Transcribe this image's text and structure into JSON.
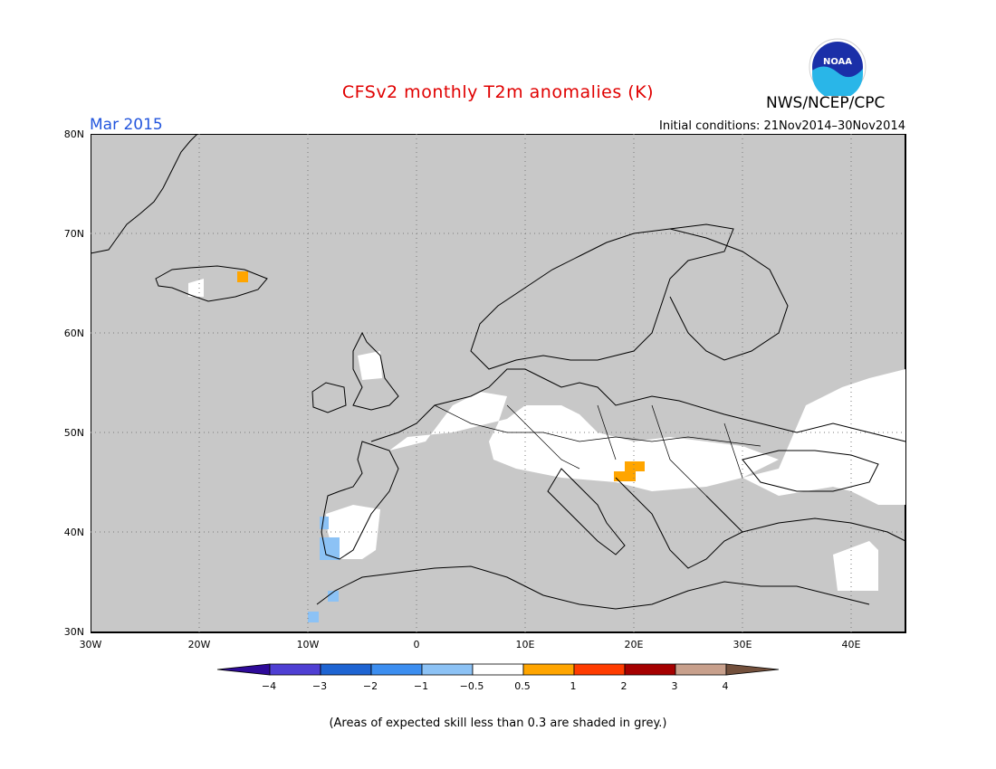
{
  "header": {
    "title": "CFSv2 monthly T2m anomalies (K)",
    "month": "Mar 2015",
    "initial_conditions": "Initial conditions: 21Nov2014–30Nov2014",
    "agency": "NWS/NCEP/CPC",
    "logo_text": "NOAA"
  },
  "map": {
    "lat_labels": [
      "80N",
      "70N",
      "60N",
      "50N",
      "40N",
      "30N"
    ],
    "lon_labels": [
      "30W",
      "20W",
      "10W",
      "0",
      "10E",
      "20E",
      "30E",
      "40E"
    ],
    "background_color": "#c8c8c8",
    "skill_color": "#ffffff"
  },
  "colorbar": {
    "labels": [
      "−4",
      "−3",
      "−2",
      "−1",
      "−0.5",
      "0.5",
      "1",
      "2",
      "3",
      "4"
    ],
    "colors": [
      "#2e0a99",
      "#4f3fd3",
      "#1e64d2",
      "#3c8ef0",
      "#8cc2f5",
      "#ffffff",
      "#ffa500",
      "#ff3c00",
      "#a50000",
      "#c8a08c",
      "#73503c"
    ]
  },
  "footnote": "(Areas of expected skill less than 0.3 are shaded in grey.)"
}
